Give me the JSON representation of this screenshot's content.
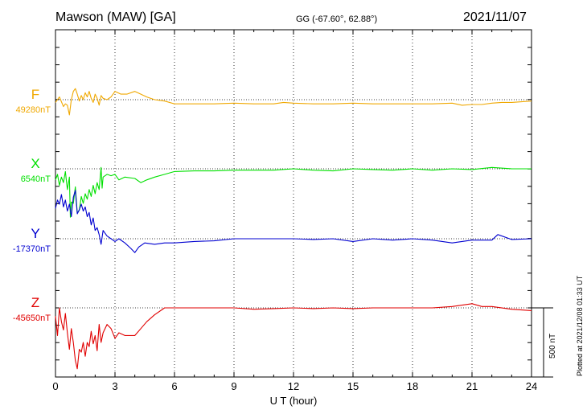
{
  "header": {
    "station": "Mawson (MAW)  [GA]",
    "coords": "GG (-67.60°,  62.88°)",
    "date": "2021/11/07"
  },
  "plotted_note": "Plotted at 2021/12/08 01:33 UT",
  "scale_label": "500 nT",
  "chart_data": {
    "type": "line",
    "xlabel": "U T (hour)",
    "xlim": [
      0,
      24
    ],
    "xticks": [
      0,
      3,
      6,
      9,
      12,
      15,
      18,
      21,
      24
    ],
    "scale_nT": 500,
    "grid": true,
    "series": [
      {
        "name": "F",
        "baseline_label": "49280nT",
        "color": "#f0a800",
        "x": [
          0,
          0.2,
          0.4,
          0.5,
          0.6,
          0.7,
          0.8,
          0.9,
          1.0,
          1.1,
          1.2,
          1.3,
          1.4,
          1.5,
          1.6,
          1.7,
          1.8,
          1.9,
          2.0,
          2.1,
          2.2,
          2.3,
          2.4,
          2.6,
          2.8,
          3.0,
          3.3,
          3.6,
          4.0,
          4.3,
          4.6,
          5.0,
          5.5,
          6.0,
          7.0,
          8.0,
          9.0,
          10.0,
          11.0,
          11.5,
          12.0,
          13.0,
          14.0,
          15.0,
          16.0,
          17.0,
          18.0,
          19.0,
          20.0,
          20.5,
          21.0,
          21.5,
          22.0,
          22.5,
          23.0,
          23.5,
          24.0
        ],
        "values": [
          -20,
          20,
          -50,
          -30,
          -40,
          -110,
          0,
          60,
          80,
          40,
          -10,
          30,
          0,
          50,
          20,
          60,
          10,
          -20,
          40,
          10,
          -40,
          30,
          10,
          0,
          20,
          60,
          40,
          40,
          60,
          40,
          20,
          0,
          -10,
          -30,
          -30,
          -30,
          -25,
          -30,
          -30,
          -20,
          -25,
          -30,
          -30,
          -25,
          -30,
          -30,
          -30,
          -30,
          -25,
          -40,
          -35,
          -35,
          -25,
          -20,
          -20,
          -15,
          -10
        ]
      },
      {
        "name": "X",
        "baseline_label": "6540nT",
        "color": "#00e000",
        "x": [
          0,
          0.1,
          0.2,
          0.3,
          0.4,
          0.5,
          0.6,
          0.7,
          0.75,
          0.8,
          0.9,
          1.0,
          1.1,
          1.2,
          1.3,
          1.4,
          1.5,
          1.6,
          1.7,
          1.8,
          1.9,
          2.0,
          2.1,
          2.2,
          2.3,
          2.35,
          2.4,
          2.6,
          2.8,
          3.0,
          3.2,
          3.5,
          4.0,
          4.3,
          4.6,
          5.0,
          5.5,
          6.0,
          7.0,
          8.0,
          9.0,
          10.0,
          11.0,
          12.0,
          13.0,
          14.0,
          15.0,
          16.0,
          17.0,
          18.0,
          19.0,
          20.0,
          21.0,
          22.0,
          23.0,
          24.0
        ],
        "values": [
          -80,
          -40,
          -120,
          -60,
          -100,
          -20,
          -150,
          -60,
          -350,
          -240,
          -250,
          -130,
          -320,
          -300,
          -200,
          -250,
          -180,
          -220,
          -150,
          -200,
          -120,
          -180,
          -100,
          -150,
          10,
          -140,
          -60,
          -40,
          -50,
          -40,
          -80,
          -60,
          -70,
          -100,
          -80,
          -60,
          -40,
          -20,
          -15,
          -15,
          -10,
          -10,
          -10,
          0,
          -10,
          -15,
          0,
          -5,
          -10,
          0,
          -10,
          0,
          -5,
          10,
          0,
          0
        ]
      },
      {
        "name": "Y",
        "baseline_label": "-17370nT",
        "color": "#0000d0",
        "x": [
          0,
          0.1,
          0.2,
          0.3,
          0.4,
          0.5,
          0.6,
          0.7,
          0.8,
          0.9,
          1.0,
          1.1,
          1.2,
          1.3,
          1.4,
          1.5,
          1.6,
          1.7,
          1.8,
          1.9,
          2.0,
          2.1,
          2.2,
          2.3,
          2.4,
          2.6,
          2.8,
          3.0,
          3.2,
          3.5,
          3.8,
          4.0,
          4.2,
          4.5,
          5.0,
          5.5,
          6.0,
          7.0,
          8.0,
          9.0,
          10.0,
          11.0,
          12.0,
          13.0,
          14.0,
          15.0,
          16.0,
          17.0,
          18.0,
          19.0,
          20.0,
          21.0,
          22.0,
          22.3,
          23.0,
          24.0
        ],
        "values": [
          220,
          280,
          250,
          320,
          230,
          280,
          200,
          250,
          160,
          300,
          350,
          180,
          210,
          250,
          200,
          230,
          160,
          190,
          100,
          150,
          60,
          80,
          30,
          -40,
          60,
          20,
          0,
          -20,
          0,
          -30,
          -70,
          -100,
          -60,
          -30,
          -40,
          -30,
          -30,
          -20,
          -15,
          0,
          0,
          0,
          0,
          -5,
          0,
          -20,
          0,
          -10,
          0,
          -10,
          -30,
          -10,
          -10,
          30,
          -5,
          0
        ]
      },
      {
        "name": "Z",
        "baseline_label": "-45650nT",
        "color": "#e00000",
        "x": [
          0,
          0.1,
          0.2,
          0.3,
          0.4,
          0.5,
          0.6,
          0.7,
          0.8,
          0.9,
          1.0,
          1.1,
          1.2,
          1.3,
          1.4,
          1.5,
          1.6,
          1.7,
          1.8,
          1.9,
          2.0,
          2.1,
          2.2,
          2.3,
          2.4,
          2.6,
          2.8,
          3.0,
          3.2,
          3.5,
          4.0,
          4.3,
          4.6,
          5.0,
          5.5,
          6.0,
          7.0,
          8.0,
          9.0,
          10.0,
          11.0,
          12.0,
          13.0,
          14.0,
          15.0,
          16.0,
          17.0,
          18.0,
          19.0,
          20.0,
          20.5,
          21.0,
          21.5,
          22.0,
          23.0,
          24.0
        ],
        "values": [
          -60,
          -200,
          0,
          -100,
          -160,
          -40,
          -180,
          -300,
          -150,
          -250,
          -380,
          -440,
          -300,
          -320,
          -250,
          -350,
          -250,
          -280,
          -170,
          -260,
          -200,
          -310,
          -120,
          -250,
          -180,
          -120,
          -150,
          -220,
          -180,
          -200,
          -200,
          -150,
          -100,
          -50,
          0,
          0,
          0,
          0,
          0,
          -10,
          -5,
          0,
          -5,
          0,
          -5,
          0,
          0,
          0,
          0,
          10,
          20,
          30,
          10,
          10,
          -10,
          -20
        ]
      }
    ]
  }
}
